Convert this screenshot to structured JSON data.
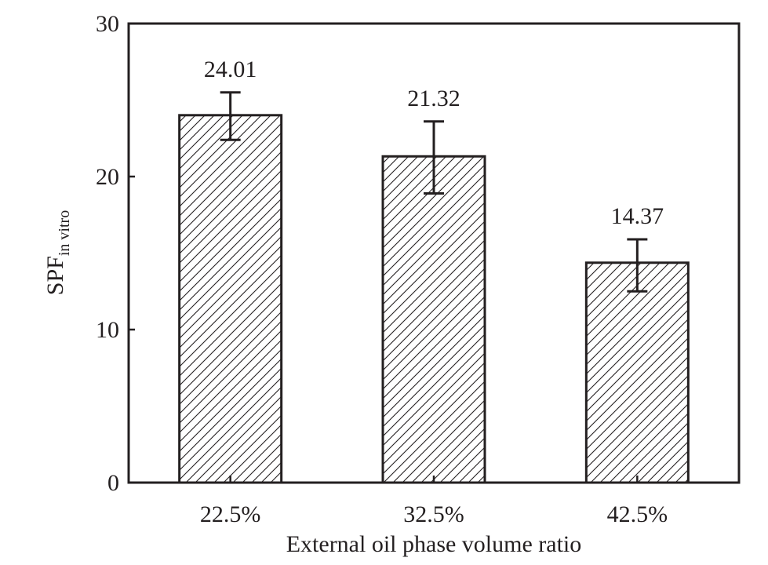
{
  "chart_data": {
    "type": "bar",
    "categories": [
      "22.5%",
      "32.5%",
      "42.5%"
    ],
    "values": [
      24.01,
      21.32,
      14.37
    ],
    "error_low": [
      22.4,
      18.9,
      12.5
    ],
    "error_high": [
      25.5,
      23.6,
      15.9
    ],
    "data_labels": [
      "24.01",
      "21.32",
      "14.37"
    ],
    "xlabel": "External oil phase volume ratio",
    "ylabel_main": "SPF",
    "ylabel_sub": "in vitro",
    "ylim": [
      0,
      30
    ],
    "yticks": [
      0,
      10,
      20,
      30
    ],
    "ytick_labels": [
      "0",
      "10",
      "20",
      "30"
    ],
    "grid": false,
    "legend": "none",
    "bar_fill": "hatched",
    "colors": {
      "ink": "#231f20",
      "background": "#ffffff"
    }
  }
}
